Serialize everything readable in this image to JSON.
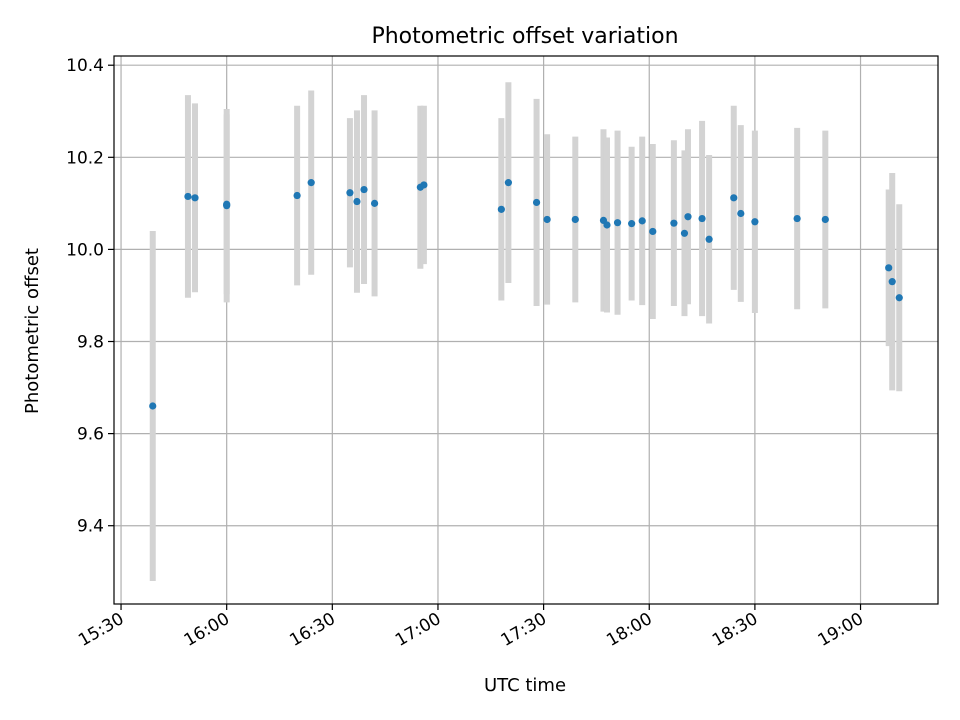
{
  "chart_data": {
    "type": "scatter",
    "title": "Photometric offset variation",
    "xlabel": "UTC time",
    "ylabel": "Photometric offset",
    "x_ticks": [
      "15:30",
      "16:00",
      "16:30",
      "17:00",
      "17:30",
      "18:00",
      "18:30",
      "19:00"
    ],
    "y_ticks": [
      "9.4",
      "9.6",
      "9.8",
      "10.0",
      "10.2",
      "10.4"
    ],
    "xlim": [
      "15:28",
      "19:22"
    ],
    "ylim": [
      9.23,
      10.42
    ],
    "grid": true,
    "marker_color": "#1f77b4",
    "errorbar_color": "#d3d3d3",
    "series": [
      {
        "points": [
          {
            "t": "15:39",
            "y": 9.66,
            "err": 0.38
          },
          {
            "t": "15:49",
            "y": 10.115,
            "err": 0.22
          },
          {
            "t": "15:51",
            "y": 10.112,
            "err": 0.205
          },
          {
            "t": "15:60",
            "y": 10.095,
            "err": 0.21
          },
          {
            "t": "16:00",
            "y": 10.098,
            "err": 0.195
          },
          {
            "t": "16:20",
            "y": 10.117,
            "err": 0.195
          },
          {
            "t": "16:24",
            "y": 10.145,
            "err": 0.2
          },
          {
            "t": "16:35",
            "y": 10.123,
            "err": 0.162
          },
          {
            "t": "16:37",
            "y": 10.104,
            "err": 0.198
          },
          {
            "t": "16:39",
            "y": 10.13,
            "err": 0.205
          },
          {
            "t": "16:42",
            "y": 10.1,
            "err": 0.202
          },
          {
            "t": "16:55",
            "y": 10.135,
            "err": 0.177
          },
          {
            "t": "16:56",
            "y": 10.14,
            "err": 0.172
          },
          {
            "t": "17:18",
            "y": 10.087,
            "err": 0.198
          },
          {
            "t": "17:20",
            "y": 10.145,
            "err": 0.218
          },
          {
            "t": "17:28",
            "y": 10.102,
            "err": 0.225
          },
          {
            "t": "17:31",
            "y": 10.065,
            "err": 0.185
          },
          {
            "t": "17:39",
            "y": 10.065,
            "err": 0.18
          },
          {
            "t": "17:47",
            "y": 10.063,
            "err": 0.198
          },
          {
            "t": "17:48",
            "y": 10.053,
            "err": 0.19
          },
          {
            "t": "17:51",
            "y": 10.058,
            "err": 0.2
          },
          {
            "t": "17:55",
            "y": 10.056,
            "err": 0.167
          },
          {
            "t": "17:58",
            "y": 10.062,
            "err": 0.183
          },
          {
            "t": "18:01",
            "y": 10.039,
            "err": 0.19
          },
          {
            "t": "18:07",
            "y": 10.057,
            "err": 0.18
          },
          {
            "t": "18:10",
            "y": 10.035,
            "err": 0.18
          },
          {
            "t": "18:11",
            "y": 10.071,
            "err": 0.19
          },
          {
            "t": "18:15",
            "y": 10.067,
            "err": 0.212
          },
          {
            "t": "18:17",
            "y": 10.022,
            "err": 0.183
          },
          {
            "t": "18:24",
            "y": 10.112,
            "err": 0.2
          },
          {
            "t": "18:26",
            "y": 10.078,
            "err": 0.192
          },
          {
            "t": "18:30",
            "y": 10.06,
            "err": 0.198
          },
          {
            "t": "18:42",
            "y": 10.067,
            "err": 0.197
          },
          {
            "t": "18:50",
            "y": 10.065,
            "err": 0.193
          },
          {
            "t": "19:08",
            "y": 9.96,
            "err": 0.17
          },
          {
            "t": "19:09",
            "y": 9.93,
            "err": 0.236
          },
          {
            "t": "19:11",
            "y": 9.895,
            "err": 0.203
          }
        ]
      }
    ]
  }
}
